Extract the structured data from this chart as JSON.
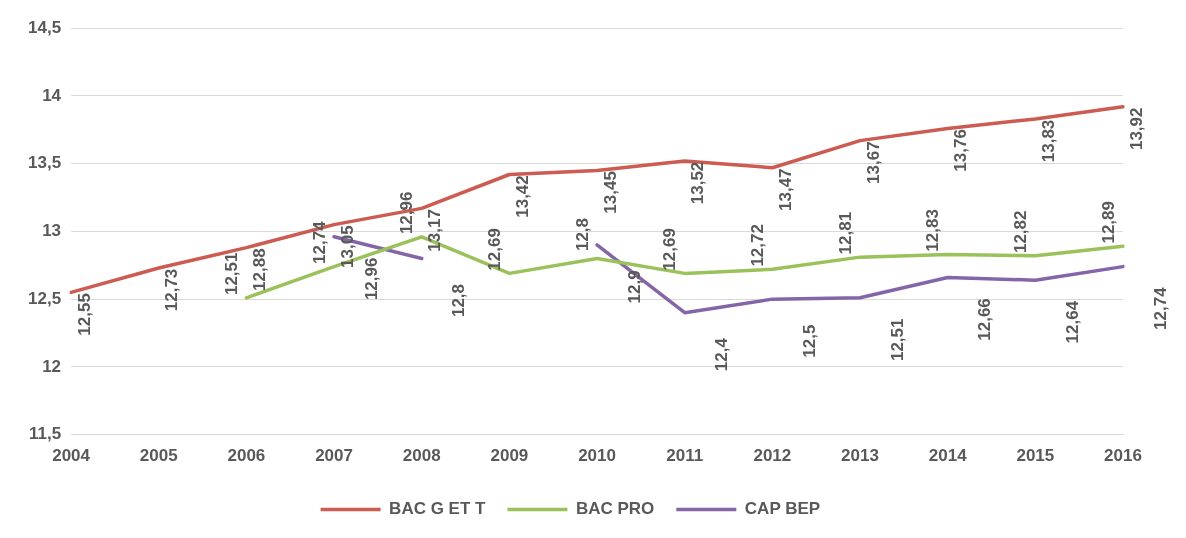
{
  "chart_data": {
    "type": "line",
    "categories": [
      "2004",
      "2005",
      "2006",
      "2007",
      "2008",
      "2009",
      "2010",
      "2011",
      "2012",
      "2013",
      "2014",
      "2015",
      "2016"
    ],
    "series": [
      {
        "name": "BAC G ET T",
        "color": "#cc5b52",
        "values": [
          12.55,
          12.73,
          12.88,
          13.05,
          13.17,
          13.42,
          13.45,
          13.52,
          13.47,
          13.67,
          13.76,
          13.83,
          13.92
        ],
        "value_labels": [
          "12,55",
          "12,73",
          "12,88",
          "13,05",
          "13,17",
          "13,42",
          "13,45",
          "13,52",
          "13,47",
          "13,67",
          "13,76",
          "13,83",
          "13,92"
        ]
      },
      {
        "name": "BAC PRO",
        "color": "#9bc25a",
        "values": [
          null,
          null,
          12.51,
          12.74,
          12.96,
          12.69,
          12.8,
          12.69,
          12.72,
          12.81,
          12.83,
          12.82,
          12.89
        ],
        "value_labels": [
          null,
          null,
          "12,51",
          "12,74",
          "12,96",
          "12,69",
          "12,8",
          "12,69",
          "12,72",
          "12,81",
          "12,83",
          "12,82",
          "12,89"
        ]
      },
      {
        "name": "CAP BEP",
        "color": "#8466a8",
        "values": [
          null,
          null,
          null,
          12.96,
          12.8,
          null,
          12.9,
          12.4,
          12.5,
          12.51,
          12.66,
          12.64,
          12.74
        ],
        "value_labels": [
          null,
          null,
          null,
          "12,96",
          "12,8",
          null,
          "12,9",
          "12,4",
          "12,5",
          "12,51",
          "12,66",
          "12,64",
          "12,74"
        ]
      }
    ],
    "ylim": [
      11.5,
      14.5
    ],
    "yticks": [
      {
        "value": 11.5,
        "label": "11,5"
      },
      12,
      {
        "value": 12.5,
        "label": "12,5"
      },
      13,
      {
        "value": 13.5,
        "label": "13,5"
      },
      14,
      {
        "value": 14.5,
        "label": "14,5"
      }
    ],
    "grid": "y",
    "legend": "bottom",
    "marker": "none",
    "line_style": "solid"
  }
}
